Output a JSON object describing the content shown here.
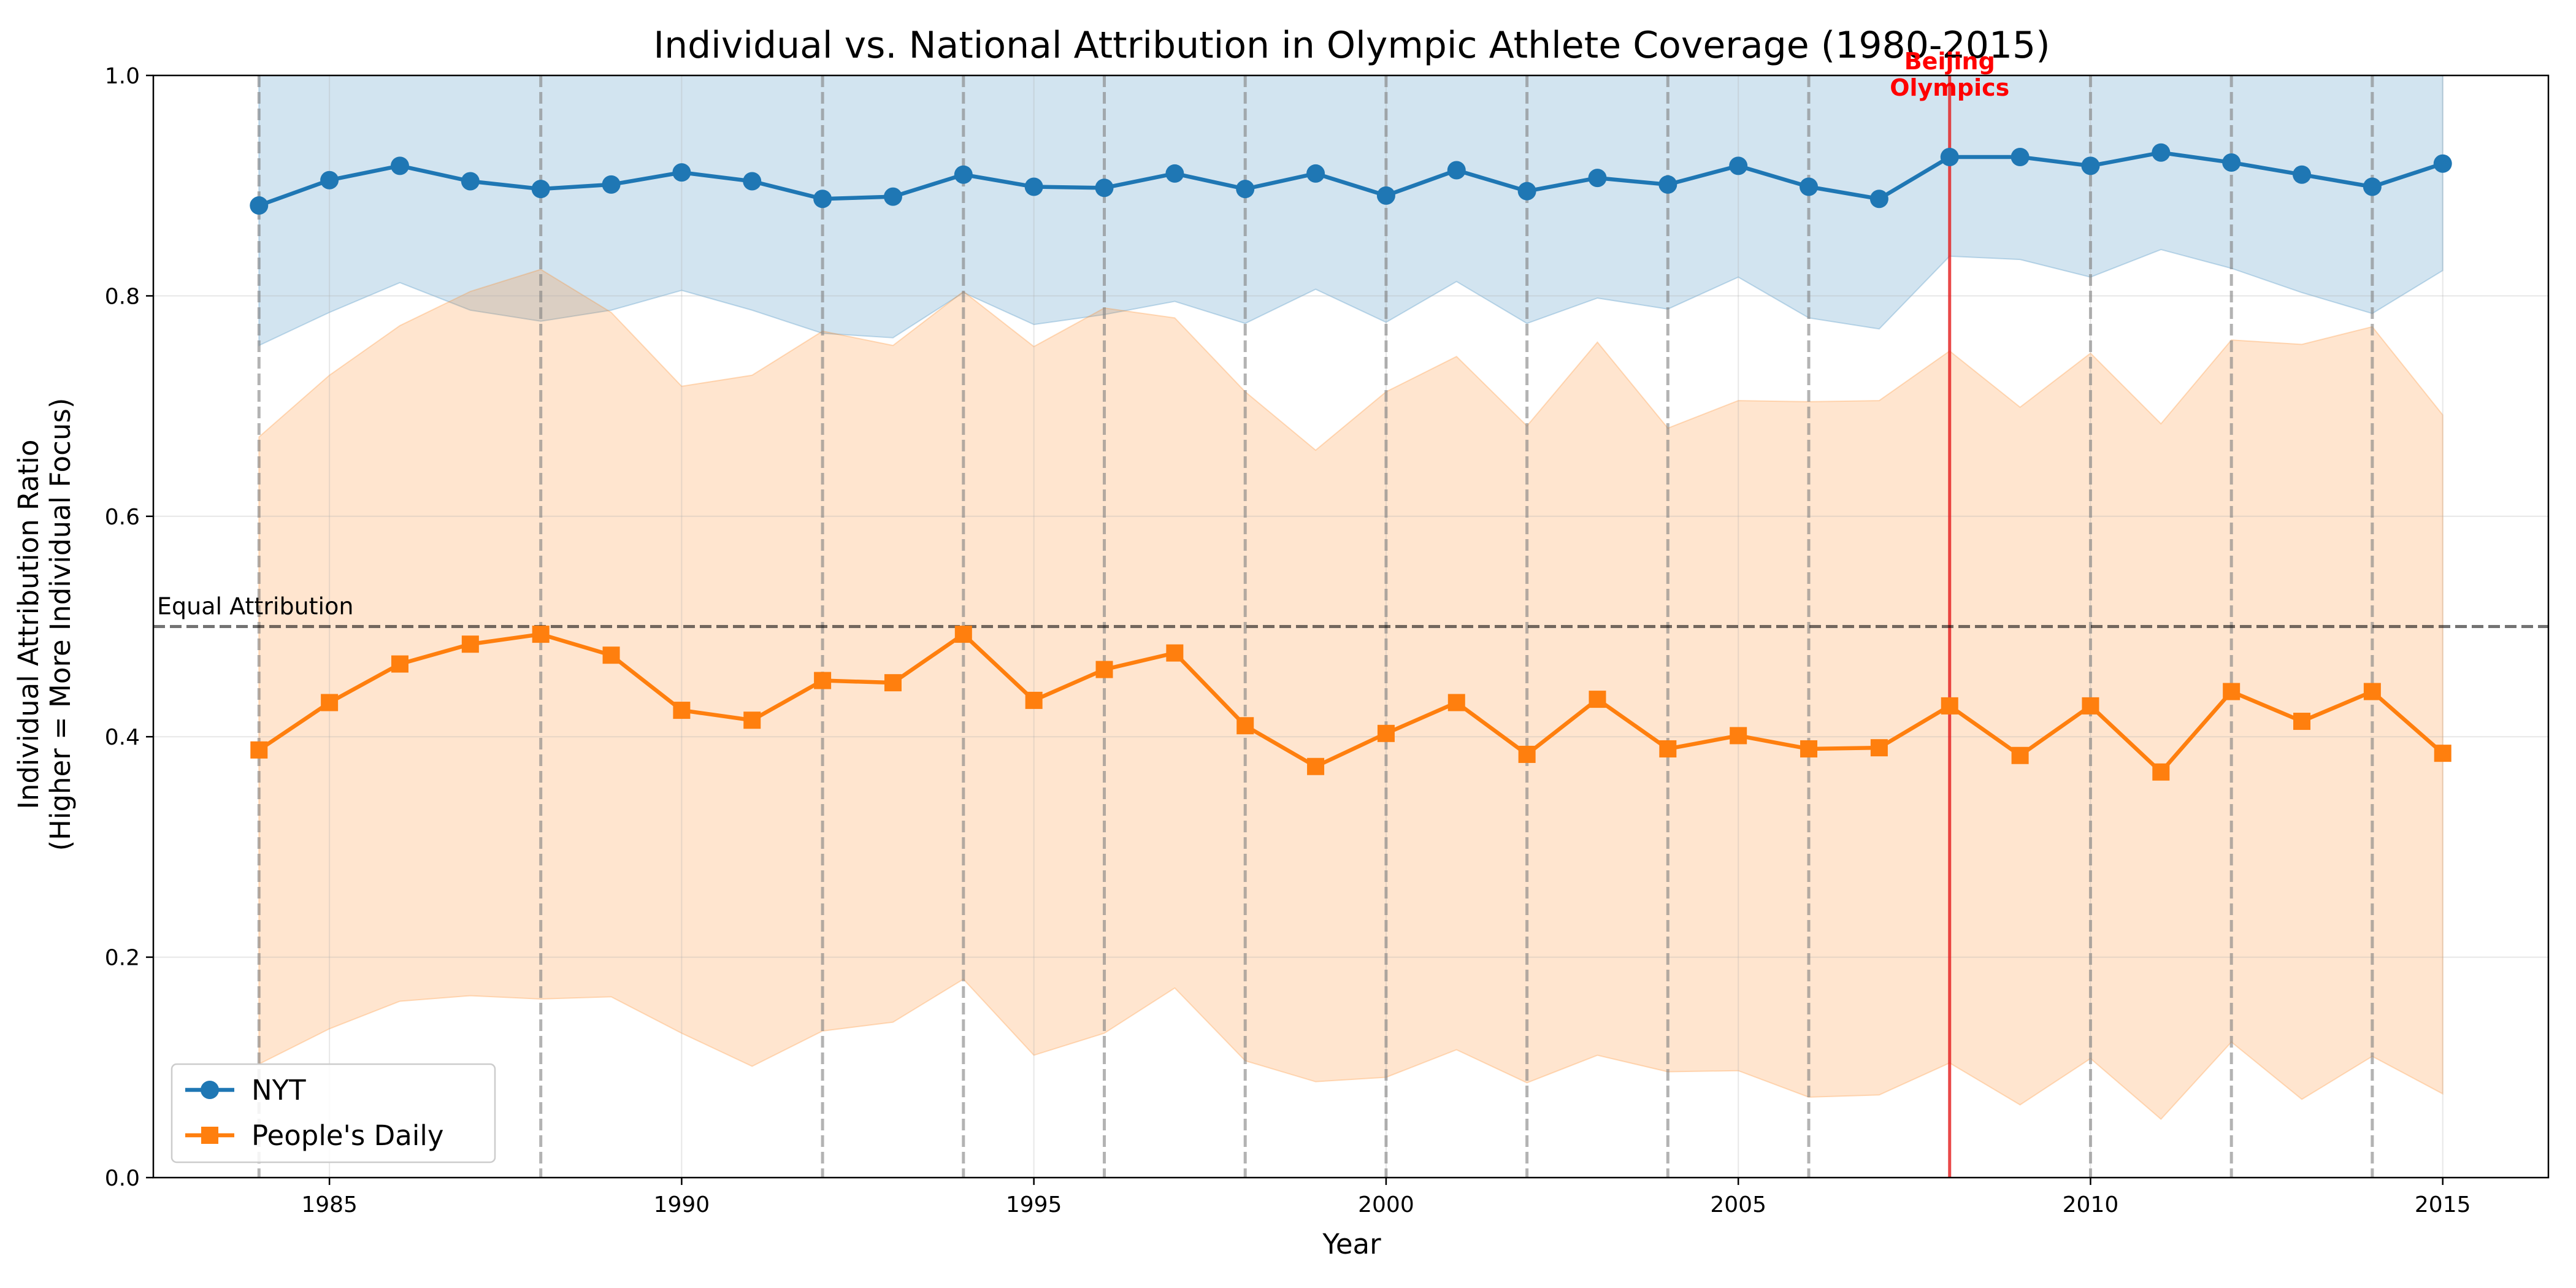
{
  "chart_data": {
    "type": "line",
    "title": "Individual vs. National Attribution in Olympic Athlete Coverage (1980-2015)",
    "xlabel": "Year",
    "ylabel_line1": "Individual Attribution Ratio",
    "ylabel_line2": "(Higher = More Individual Focus)",
    "xlim": [
      1982.5,
      2016.5
    ],
    "ylim": [
      0,
      1.0
    ],
    "xticks": [
      1985,
      1990,
      1995,
      2000,
      2005,
      2010,
      2015
    ],
    "yticks": [
      0.0,
      0.2,
      0.4,
      0.6,
      0.8,
      1.0
    ],
    "x": [
      1984,
      1985,
      1986,
      1987,
      1988,
      1989,
      1990,
      1991,
      1992,
      1993,
      1994,
      1995,
      1996,
      1997,
      1998,
      1999,
      2000,
      2001,
      2002,
      2003,
      2004,
      2005,
      2006,
      2007,
      2008,
      2009,
      2010,
      2011,
      2012,
      2013,
      2014,
      2015
    ],
    "series": [
      {
        "name": "NYT",
        "color": "#1f77b4",
        "marker": "circle",
        "values": [
          0.882,
          0.905,
          0.918,
          0.904,
          0.897,
          0.901,
          0.912,
          0.904,
          0.888,
          0.89,
          0.91,
          0.899,
          0.898,
          0.911,
          0.897,
          0.911,
          0.891,
          0.914,
          0.895,
          0.907,
          0.901,
          0.918,
          0.899,
          0.888,
          0.926,
          0.926,
          0.918,
          0.93,
          0.921,
          0.91,
          0.899,
          0.92
        ],
        "lower": [
          0.755,
          0.785,
          0.812,
          0.787,
          0.777,
          0.787,
          0.805,
          0.787,
          0.766,
          0.762,
          0.803,
          0.774,
          0.783,
          0.795,
          0.775,
          0.806,
          0.776,
          0.813,
          0.775,
          0.798,
          0.788,
          0.817,
          0.78,
          0.77,
          0.836,
          0.833,
          0.817,
          0.842,
          0.825,
          0.803,
          0.784,
          0.823
        ],
        "upper": [
          1.0,
          1.0,
          1.0,
          1.0,
          1.0,
          1.0,
          1.0,
          1.0,
          1.0,
          1.0,
          1.0,
          1.0,
          1.0,
          1.0,
          1.0,
          1.0,
          1.0,
          1.0,
          1.0,
          1.0,
          1.0,
          1.0,
          1.0,
          1.0,
          1.0,
          1.0,
          1.0,
          1.0,
          1.0,
          1.0,
          1.0,
          1.0
        ]
      },
      {
        "name": "People's Daily",
        "color": "#ff7f0e",
        "marker": "square",
        "values": [
          0.388,
          0.431,
          0.466,
          0.484,
          0.493,
          0.474,
          0.424,
          0.415,
          0.451,
          0.449,
          0.493,
          0.433,
          0.461,
          0.476,
          0.41,
          0.373,
          0.403,
          0.431,
          0.384,
          0.434,
          0.389,
          0.401,
          0.389,
          0.39,
          0.428,
          0.383,
          0.428,
          0.368,
          0.441,
          0.414,
          0.441,
          0.385
        ],
        "lower": [
          0.103,
          0.135,
          0.16,
          0.165,
          0.162,
          0.164,
          0.131,
          0.101,
          0.133,
          0.141,
          0.18,
          0.111,
          0.131,
          0.172,
          0.106,
          0.087,
          0.091,
          0.116,
          0.086,
          0.111,
          0.096,
          0.097,
          0.073,
          0.075,
          0.104,
          0.066,
          0.108,
          0.053,
          0.123,
          0.071,
          0.11,
          0.076
        ],
        "upper": [
          0.672,
          0.728,
          0.773,
          0.804,
          0.824,
          0.785,
          0.718,
          0.728,
          0.768,
          0.755,
          0.804,
          0.754,
          0.789,
          0.78,
          0.713,
          0.66,
          0.713,
          0.745,
          0.682,
          0.758,
          0.68,
          0.705,
          0.704,
          0.705,
          0.75,
          0.699,
          0.748,
          0.684,
          0.76,
          0.756,
          0.772,
          0.692
        ]
      }
    ],
    "olympic_years": [
      1984,
      1988,
      1992,
      1994,
      1996,
      1998,
      2000,
      2002,
      2004,
      2006,
      2008,
      2010,
      2012,
      2014
    ],
    "beijing_year": 2008,
    "beijing_label_line1": "Beijing",
    "beijing_label_line2": "Olympics",
    "beijing_color": "#e41a1c",
    "equal_line_value": 0.5,
    "equal_line_label": "Equal Attribution",
    "grid": true,
    "legend_position": "lower-left"
  }
}
